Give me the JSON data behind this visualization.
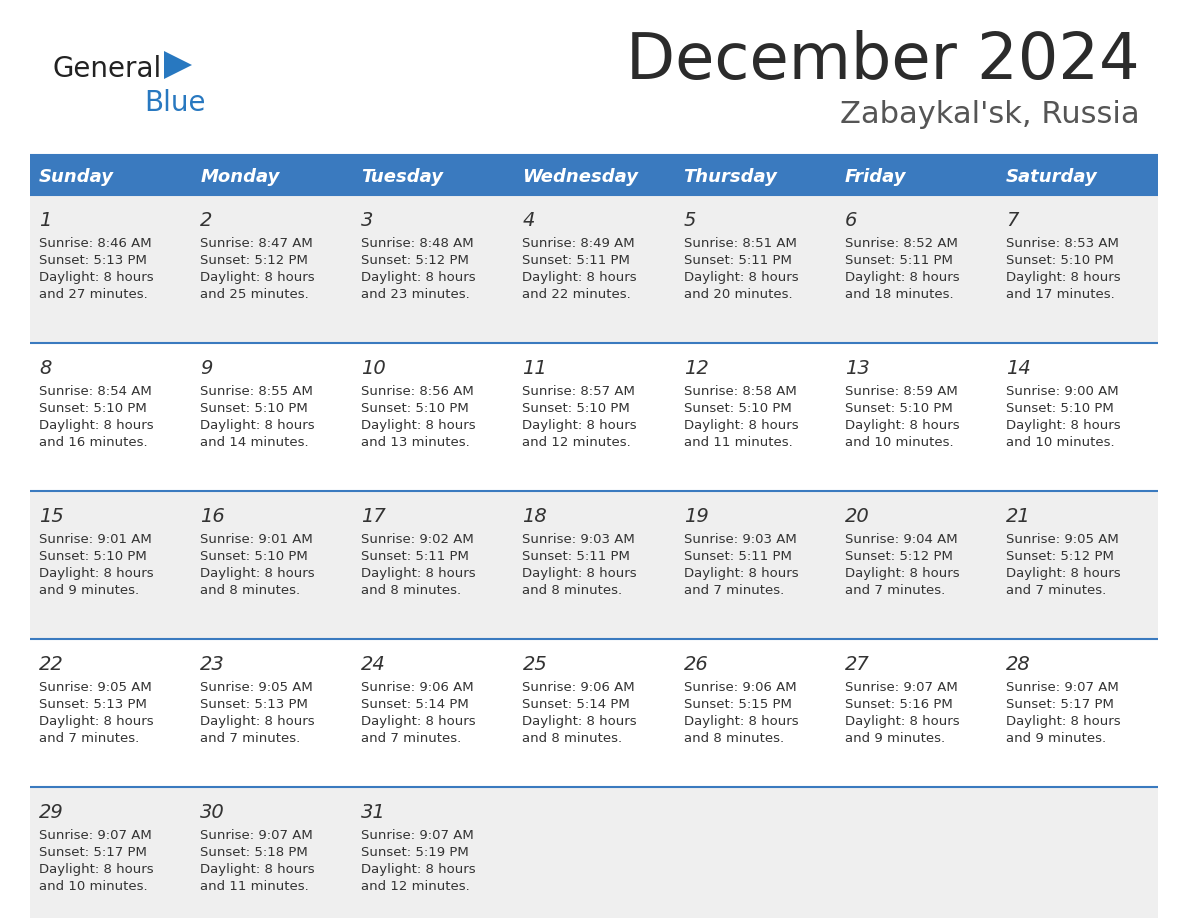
{
  "title": "December 2024",
  "subtitle": "Zabaykal'sk, Russia",
  "title_color": "#2b2b2b",
  "subtitle_color": "#555555",
  "header_bg_color": "#3a7abf",
  "header_text_color": "#ffffff",
  "row_bg_even": "#efefef",
  "row_bg_odd": "#ffffff",
  "cell_border_color": "#3a7abf",
  "days_of_week": [
    "Sunday",
    "Monday",
    "Tuesday",
    "Wednesday",
    "Thursday",
    "Friday",
    "Saturday"
  ],
  "weeks": [
    [
      {
        "day": 1,
        "sunrise": "8:46 AM",
        "sunset": "5:13 PM",
        "daylight": "8 hours and 27 minutes"
      },
      {
        "day": 2,
        "sunrise": "8:47 AM",
        "sunset": "5:12 PM",
        "daylight": "8 hours and 25 minutes"
      },
      {
        "day": 3,
        "sunrise": "8:48 AM",
        "sunset": "5:12 PM",
        "daylight": "8 hours and 23 minutes"
      },
      {
        "day": 4,
        "sunrise": "8:49 AM",
        "sunset": "5:11 PM",
        "daylight": "8 hours and 22 minutes"
      },
      {
        "day": 5,
        "sunrise": "8:51 AM",
        "sunset": "5:11 PM",
        "daylight": "8 hours and 20 minutes"
      },
      {
        "day": 6,
        "sunrise": "8:52 AM",
        "sunset": "5:11 PM",
        "daylight": "8 hours and 18 minutes"
      },
      {
        "day": 7,
        "sunrise": "8:53 AM",
        "sunset": "5:10 PM",
        "daylight": "8 hours and 17 minutes"
      }
    ],
    [
      {
        "day": 8,
        "sunrise": "8:54 AM",
        "sunset": "5:10 PM",
        "daylight": "8 hours and 16 minutes"
      },
      {
        "day": 9,
        "sunrise": "8:55 AM",
        "sunset": "5:10 PM",
        "daylight": "8 hours and 14 minutes"
      },
      {
        "day": 10,
        "sunrise": "8:56 AM",
        "sunset": "5:10 PM",
        "daylight": "8 hours and 13 minutes"
      },
      {
        "day": 11,
        "sunrise": "8:57 AM",
        "sunset": "5:10 PM",
        "daylight": "8 hours and 12 minutes"
      },
      {
        "day": 12,
        "sunrise": "8:58 AM",
        "sunset": "5:10 PM",
        "daylight": "8 hours and 11 minutes"
      },
      {
        "day": 13,
        "sunrise": "8:59 AM",
        "sunset": "5:10 PM",
        "daylight": "8 hours and 10 minutes"
      },
      {
        "day": 14,
        "sunrise": "9:00 AM",
        "sunset": "5:10 PM",
        "daylight": "8 hours and 10 minutes"
      }
    ],
    [
      {
        "day": 15,
        "sunrise": "9:01 AM",
        "sunset": "5:10 PM",
        "daylight": "8 hours and 9 minutes"
      },
      {
        "day": 16,
        "sunrise": "9:01 AM",
        "sunset": "5:10 PM",
        "daylight": "8 hours and 8 minutes"
      },
      {
        "day": 17,
        "sunrise": "9:02 AM",
        "sunset": "5:11 PM",
        "daylight": "8 hours and 8 minutes"
      },
      {
        "day": 18,
        "sunrise": "9:03 AM",
        "sunset": "5:11 PM",
        "daylight": "8 hours and 8 minutes"
      },
      {
        "day": 19,
        "sunrise": "9:03 AM",
        "sunset": "5:11 PM",
        "daylight": "8 hours and 7 minutes"
      },
      {
        "day": 20,
        "sunrise": "9:04 AM",
        "sunset": "5:12 PM",
        "daylight": "8 hours and 7 minutes"
      },
      {
        "day": 21,
        "sunrise": "9:05 AM",
        "sunset": "5:12 PM",
        "daylight": "8 hours and 7 minutes"
      }
    ],
    [
      {
        "day": 22,
        "sunrise": "9:05 AM",
        "sunset": "5:13 PM",
        "daylight": "8 hours and 7 minutes"
      },
      {
        "day": 23,
        "sunrise": "9:05 AM",
        "sunset": "5:13 PM",
        "daylight": "8 hours and 7 minutes"
      },
      {
        "day": 24,
        "sunrise": "9:06 AM",
        "sunset": "5:14 PM",
        "daylight": "8 hours and 7 minutes"
      },
      {
        "day": 25,
        "sunrise": "9:06 AM",
        "sunset": "5:14 PM",
        "daylight": "8 hours and 8 minutes"
      },
      {
        "day": 26,
        "sunrise": "9:06 AM",
        "sunset": "5:15 PM",
        "daylight": "8 hours and 8 minutes"
      },
      {
        "day": 27,
        "sunrise": "9:07 AM",
        "sunset": "5:16 PM",
        "daylight": "8 hours and 9 minutes"
      },
      {
        "day": 28,
        "sunrise": "9:07 AM",
        "sunset": "5:17 PM",
        "daylight": "8 hours and 9 minutes"
      }
    ],
    [
      {
        "day": 29,
        "sunrise": "9:07 AM",
        "sunset": "5:17 PM",
        "daylight": "8 hours and 10 minutes"
      },
      {
        "day": 30,
        "sunrise": "9:07 AM",
        "sunset": "5:18 PM",
        "daylight": "8 hours and 11 minutes"
      },
      {
        "day": 31,
        "sunrise": "9:07 AM",
        "sunset": "5:19 PM",
        "daylight": "8 hours and 12 minutes"
      },
      null,
      null,
      null,
      null
    ]
  ]
}
